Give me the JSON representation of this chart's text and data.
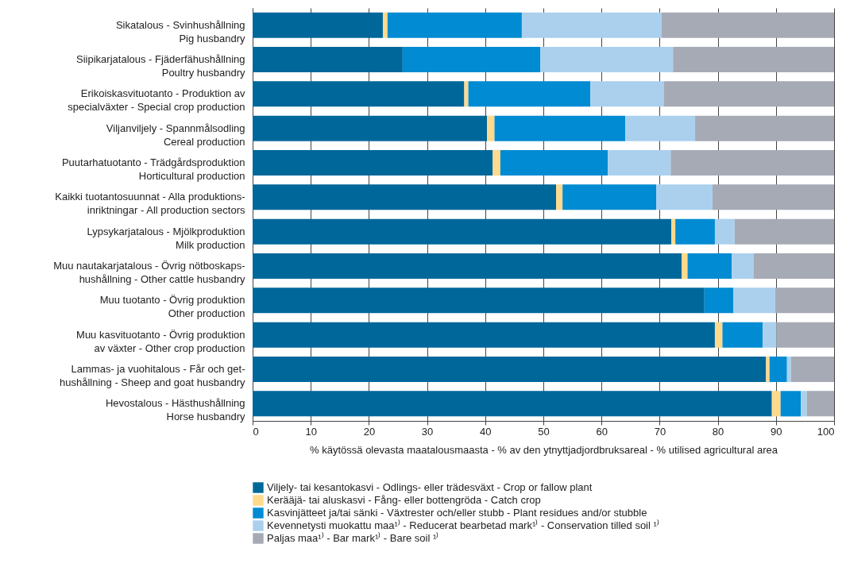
{
  "chart_data": {
    "type": "bar",
    "orientation": "horizontal",
    "stacked": true,
    "categories": [
      "Sikatalous -  Svinhushållning\nPig husbandry",
      "Siipikarjatalous - Fjäderfähushållning\nPoultry husbandry",
      "Erikoiskasvituotanto - Produktion av\nspecialväxter - Special crop production",
      "Viljanviljely - Spannmålsodling\nCereal production",
      "Puutarhatuotanto - Trädgårdsproduktion\nHorticultural production",
      "Kaikki tuotantosuunnat - Alla produktions-\ninriktningar - All production sectors",
      "Lypsykarjatalous - Mjölkproduktion\nMilk production",
      "Muu nautakarjatalous - Övrig nötboskaps-\nhushållning - Other cattle husbandry",
      "Muu tuotanto - Övrig produktion\nOther production",
      "Muu kasvituotanto - Övrig produktion\nav växter - Other crop production",
      "Lammas- ja vuohitalous - Får och get-\nhushållning - Sheep and goat husbandry",
      "Hevostalous -  Hästhushållning\nHorse husbandry"
    ],
    "series": [
      {
        "name": "Viljely- tai kesantokasvi - Odlings- eller trädesväxt - Crop or fallow plant",
        "color": "#00679a",
        "values": [
          22.4,
          25.8,
          36.4,
          40.3,
          41.3,
          52.2,
          72.0,
          73.8,
          77.7,
          79.5,
          88.3,
          89.3
        ]
      },
      {
        "name": "Kerääjä- tai aluskasvi - Fång- eller bottengröda - Catch crop",
        "color": "#ffd98c",
        "values": [
          0.8,
          0,
          0.7,
          1.3,
          1.3,
          1.1,
          0.7,
          1.0,
          0,
          1.3,
          0.6,
          1.5
        ]
      },
      {
        "name": "Kasvinjätteet ja/tai sänki - Växtrester och/eller stubb - Plant residues and/or stubble",
        "color": "#008bd2",
        "values": [
          23.1,
          23.7,
          21.0,
          22.5,
          18.5,
          16.1,
          6.8,
          7.6,
          5.0,
          6.9,
          3.0,
          3.5
        ]
      },
      {
        "name": "Kevennetysti muokattu maa¹⁾ - Reducerat bearbetad mark¹⁾ - Conservation tilled soil ¹⁾",
        "color": "#abd0ee",
        "values": [
          24.0,
          22.8,
          12.6,
          12.0,
          10.8,
          9.7,
          3.4,
          3.8,
          7.2,
          2.4,
          0.7,
          1.0
        ]
      },
      {
        "name": "Paljas maa¹⁾ - Bar mark¹⁾ - Bare soil ¹⁾",
        "color": "#a6aab5",
        "values": [
          29.7,
          27.7,
          29.3,
          23.9,
          28.1,
          20.9,
          17.1,
          13.8,
          10.1,
          9.9,
          7.4,
          4.7
        ]
      }
    ],
    "xlim": [
      0,
      100
    ],
    "xticks": [
      0,
      10,
      20,
      30,
      40,
      50,
      60,
      70,
      80,
      90,
      100
    ],
    "xlabel": "% käytössä olevasta maatalousmaasta -  % av den ytnyttjadjordbruksareal - % utilised agricultural area",
    "grid": "x",
    "legend": "bottom"
  }
}
